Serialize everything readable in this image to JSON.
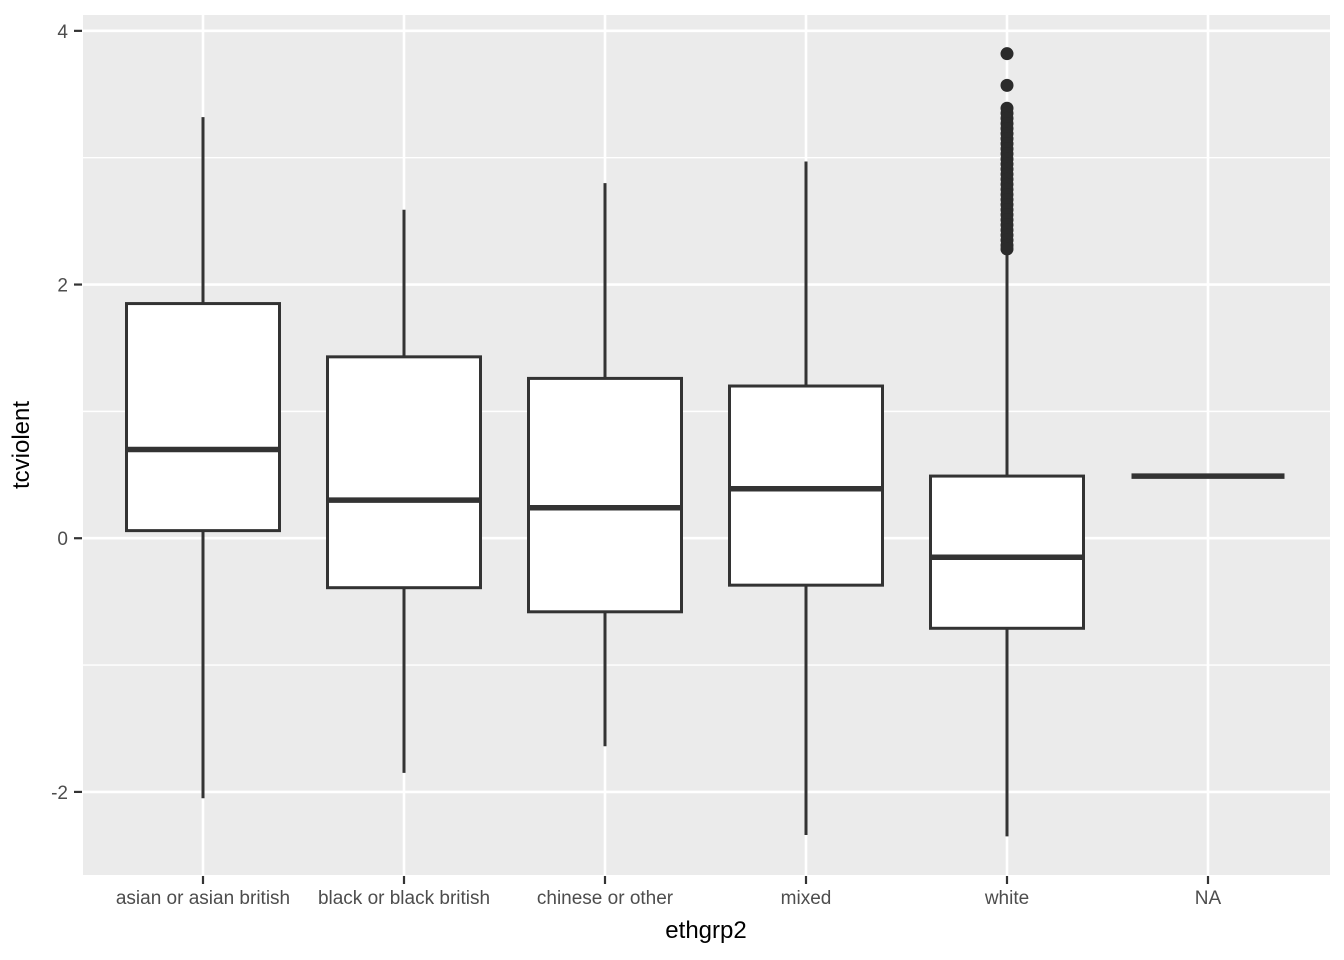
{
  "chart_data": {
    "type": "boxplot",
    "title": "",
    "xlabel": "ethgrp2",
    "ylabel": "tcviolent",
    "legend": "none",
    "grid": "major horizontal white + minor horizontal white + vertical white at each category, on grey panel",
    "y_axis": {
      "ticks": [
        4,
        2,
        0,
        -2
      ],
      "minor_ticks": [
        3,
        1,
        -1
      ],
      "domain_min": -2.655,
      "domain_max": 4.125
    },
    "categories": [
      "asian or asian british",
      "black or black british",
      "chinese or other",
      "mixed",
      "white",
      "NA"
    ],
    "groups": [
      {
        "category": "asian or asian british",
        "whisker_low": -2.05,
        "q1": 0.06,
        "median": 0.7,
        "q3": 1.85,
        "whisker_high": 3.32,
        "outliers": []
      },
      {
        "category": "black or black british",
        "whisker_low": -1.85,
        "q1": -0.39,
        "median": 0.3,
        "q3": 1.43,
        "whisker_high": 2.59,
        "outliers": []
      },
      {
        "category": "chinese or other",
        "whisker_low": -1.64,
        "q1": -0.58,
        "median": 0.24,
        "q3": 1.26,
        "whisker_high": 2.8,
        "outliers": []
      },
      {
        "category": "mixed",
        "whisker_low": -2.34,
        "q1": -0.37,
        "median": 0.39,
        "q3": 1.2,
        "whisker_high": 2.97,
        "outliers": []
      },
      {
        "category": "white",
        "whisker_low": -2.35,
        "q1": -0.71,
        "median": -0.15,
        "q3": 0.49,
        "whisker_high": 2.27,
        "outliers": [
          3.82,
          3.57,
          3.39,
          3.35,
          3.31,
          3.27,
          3.23,
          3.19,
          3.15,
          3.11,
          3.07,
          3.03,
          2.99,
          2.95,
          2.91,
          2.87,
          2.83,
          2.79,
          2.75,
          2.71,
          2.67,
          2.63,
          2.59,
          2.55,
          2.51,
          2.47,
          2.43,
          2.39,
          2.35,
          2.31,
          2.28
        ]
      },
      {
        "category": "NA",
        "whisker_low": null,
        "q1": null,
        "median": 0.49,
        "q3": null,
        "whisker_high": null,
        "outliers": []
      }
    ],
    "style": {
      "panel_bg": "#EBEBEB",
      "grid_color": "#FFFFFF",
      "box_fill": "#FFFFFF",
      "box_stroke": "#333333",
      "outlier_color": "#2B2B2B",
      "tick_mark_color": "#333333",
      "tick_label_color": "#4D4D4D",
      "axis_title_color": "#000000"
    }
  }
}
